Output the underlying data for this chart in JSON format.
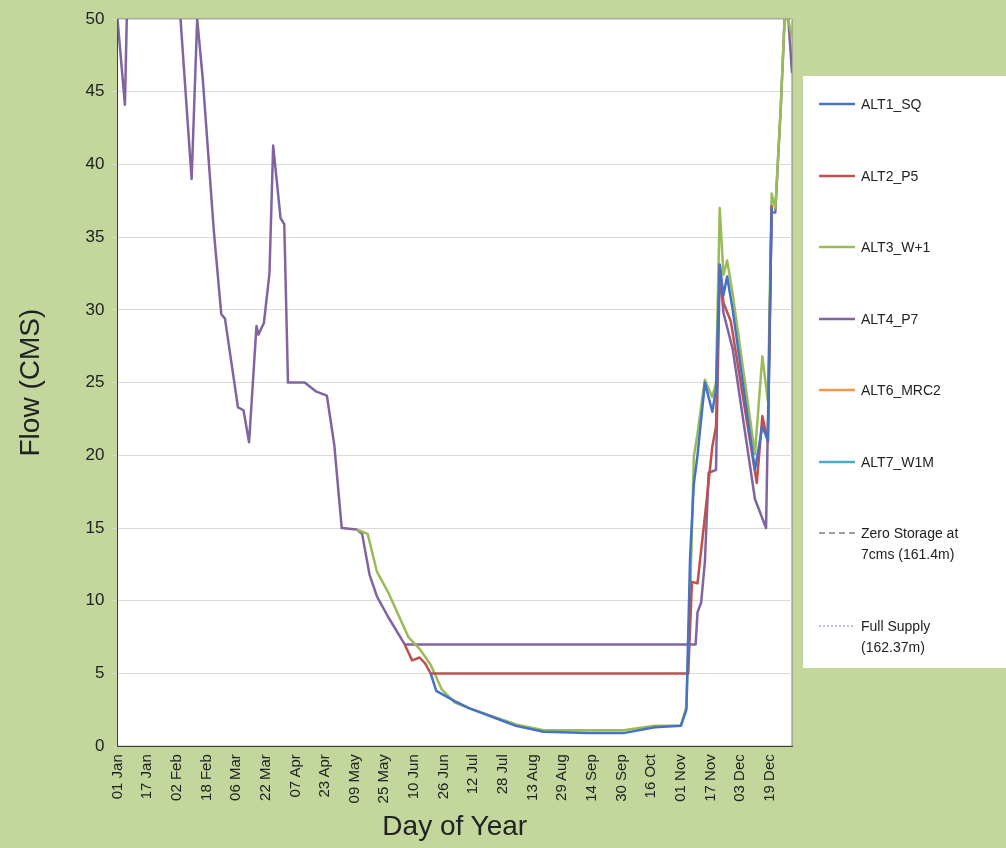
{
  "chart_data": {
    "type": "line",
    "xlabel": "Day of Year",
    "ylabel": "Flow (CMS)",
    "xlim": [
      "--01-01",
      "--12-31"
    ],
    "xticks": [
      {
        "value": "--01-01",
        "label": "01 Jan"
      },
      {
        "value": "--01-17",
        "label": "17 Jan"
      },
      {
        "value": "--02-02",
        "label": "02 Feb"
      },
      {
        "value": "--02-18",
        "label": "18 Feb"
      },
      {
        "value": "--03-06",
        "label": "06 Mar"
      },
      {
        "value": "--03-22",
        "label": "22 Mar"
      },
      {
        "value": "--04-07",
        "label": "07 Apr"
      },
      {
        "value": "--04-23",
        "label": "23 Apr"
      },
      {
        "value": "--05-09",
        "label": "09 May"
      },
      {
        "value": "--05-25",
        "label": "25 May"
      },
      {
        "value": "--06-10",
        "label": "10 Jun"
      },
      {
        "value": "--06-26",
        "label": "26 Jun"
      },
      {
        "value": "--07-12",
        "label": "12 Jul"
      },
      {
        "value": "--07-28",
        "label": "28 Jul"
      },
      {
        "value": "--08-13",
        "label": "13 Aug"
      },
      {
        "value": "--08-29",
        "label": "29 Aug"
      },
      {
        "value": "--09-14",
        "label": "14 Sep"
      },
      {
        "value": "--09-30",
        "label": "30 Sep"
      },
      {
        "value": "--10-16",
        "label": "16 Oct"
      },
      {
        "value": "--11-01",
        "label": "01 Nov"
      },
      {
        "value": "--11-17",
        "label": "17 Nov"
      },
      {
        "value": "--12-03",
        "label": "03 Dec"
      },
      {
        "value": "--12-19",
        "label": "19 Dec"
      }
    ],
    "ylim": [
      0,
      50
    ],
    "yticks": [
      0,
      5,
      10,
      15,
      20,
      25,
      30,
      35,
      40,
      45,
      50
    ],
    "grid": "y",
    "legend": "right",
    "series": [
      {
        "name": "ALT1_SQ",
        "color": "#4472c4",
        "x": [
          "--06-19",
          "--06-22",
          "--07-02",
          "--07-10",
          "--08-04",
          "--08-19",
          "--09-12",
          "--10-01",
          "--10-18",
          "--11-01",
          "--11-04",
          "--11-06",
          "--11-08",
          "--11-10",
          "--11-14",
          "--11-18",
          "--11-20",
          "--11-22",
          "--11-24",
          "--11-26",
          "--11-29",
          "--12-11",
          "--12-15",
          "--12-18",
          "--12-20"
        ],
        "values": [
          5.0,
          3.8,
          3.1,
          2.6,
          1.4,
          1.0,
          0.9,
          0.9,
          1.3,
          1.4,
          2.5,
          13.0,
          18.0,
          20.0,
          25.0,
          23.0,
          24.5,
          33.1,
          31.0,
          32.3,
          30.0,
          19.0,
          22.0,
          21.0,
          37.0
        ]
      },
      {
        "name": "ALT2_P5",
        "color": "#c0504d",
        "x": [
          "--06-05",
          "--06-09",
          "--06-13",
          "--06-16",
          "--06-19",
          "--11-05",
          "--11-07",
          "--11-10",
          "--11-14",
          "--11-18",
          "--11-20",
          "--11-22",
          "--11-24",
          "--11-28",
          "--12-12",
          "--12-15",
          "--12-18",
          "--12-20"
        ],
        "values": [
          7.0,
          5.9,
          6.1,
          5.7,
          5.0,
          5.0,
          11.3,
          11.2,
          15.8,
          20.6,
          22.0,
          33.1,
          30.5,
          29.2,
          18.1,
          22.7,
          20.9,
          37.2
        ]
      },
      {
        "name": "ALT3_W+1",
        "color": "#9bbb59",
        "x": [
          "--05-10",
          "--05-16",
          "--05-21",
          "--05-27",
          "--06-07",
          "--06-13",
          "--06-19",
          "--06-25",
          "--07-02",
          "--07-10",
          "--08-04",
          "--08-19",
          "--09-12",
          "--10-01",
          "--10-18",
          "--11-01",
          "--11-04",
          "--11-06",
          "--11-08",
          "--11-10",
          "--11-14",
          "--11-18",
          "--11-20",
          "--11-22",
          "--11-24",
          "--11-26",
          "--11-29",
          "--12-11",
          "--12-15",
          "--12-18",
          "--12-20",
          "--12-22",
          "--12-25",
          "--12-27",
          "--12-29",
          "--12-31"
        ],
        "values": [
          14.9,
          14.6,
          12.0,
          10.6,
          7.5,
          6.7,
          5.6,
          3.9,
          3.0,
          2.6,
          1.5,
          1.1,
          1.1,
          1.1,
          1.4,
          1.4,
          2.7,
          9.9,
          19.9,
          21.5,
          25.2,
          24.0,
          25.0,
          37.0,
          32.4,
          33.4,
          31.1,
          20.1,
          26.8,
          23.7,
          38.0,
          37.0,
          44.1,
          50,
          50,
          48.7
        ]
      },
      {
        "name": "ALT4_P7",
        "color": "#8064a2",
        "x": [
          "--01-01",
          "--01-05",
          "--01-06",
          "--01-20",
          "--02-04",
          "--02-10",
          "--02-13",
          "--02-16",
          "--02-22",
          "--02-26",
          "--02-28",
          "--03-07",
          "--03-10",
          "--03-13",
          "--03-17",
          "--03-18",
          "--03-21",
          "--03-24",
          "--03-26",
          "--03-30",
          "--04-01",
          "--04-03",
          "--04-12",
          "--04-18",
          "--04-24",
          "--04-28",
          "--05-02",
          "--05-10",
          "--05-13",
          "--05-17",
          "--05-21",
          "--05-27",
          "--06-05",
          "--11-09",
          "--11-10",
          "--11-12",
          "--11-14",
          "--11-16",
          "--11-20",
          "--11-22",
          "--11-24",
          "--11-29",
          "--12-11",
          "--12-17",
          "--12-20",
          "--12-22",
          "--12-25",
          "--12-27",
          "--12-29",
          "--12-31"
        ],
        "values": [
          50,
          44.1,
          50,
          null,
          50,
          39.0,
          50,
          45.9,
          35.4,
          29.7,
          29.4,
          23.3,
          23.1,
          20.9,
          28.9,
          28.3,
          29.1,
          32.5,
          41.3,
          36.3,
          35.9,
          25.0,
          25.0,
          24.4,
          24.1,
          20.7,
          15.0,
          14.9,
          14.6,
          11.8,
          10.3,
          8.9,
          7.0,
          7.0,
          9.2,
          9.9,
          12.7,
          18.8,
          19.0,
          32.9,
          29.8,
          27.3,
          17.0,
          15.0,
          36.7,
          36.7,
          44.1,
          50,
          50,
          46.3
        ]
      },
      {
        "name": "ALT6_MRC2",
        "color": "#f79646",
        "values": [
          null
        ]
      },
      {
        "name": "ALT7_W1M",
        "color": "#4bacc6",
        "values": [
          null
        ]
      },
      {
        "name": "Zero Storage at 7cms (161.4m)",
        "color": "#7f7f7f",
        "line_style": "dashed",
        "values": [
          null
        ]
      },
      {
        "name": "Full Supply (162.37m)",
        "color": "#b4a7d6",
        "line_style": "dotted",
        "values": [
          null
        ]
      }
    ]
  }
}
